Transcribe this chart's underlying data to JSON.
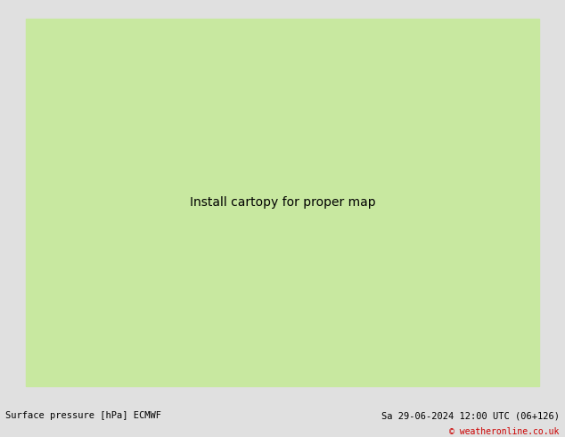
{
  "title_left": "Surface pressure [hPa] ECMWF",
  "title_right": "Sa 29-06-2024 12:00 UTC (06+126)",
  "copyright": "© weatheronline.co.uk",
  "bg_color": "#e0e0e0",
  "land_color": "#c8e8a0",
  "sea_color": "#c8ccd8",
  "border_color": "#aaaaaa",
  "contour_blue": "#0000cc",
  "contour_red": "#cc0000",
  "contour_black": "#000000",
  "font_size_labels": 6.5,
  "font_size_bottom": 7.5,
  "bottom_bar_color": "#ffffff",
  "figsize": [
    6.34,
    4.9
  ],
  "dpi": 100,
  "lon_min": -10,
  "lon_max": 35,
  "lat_min": 42,
  "lat_max": 62
}
